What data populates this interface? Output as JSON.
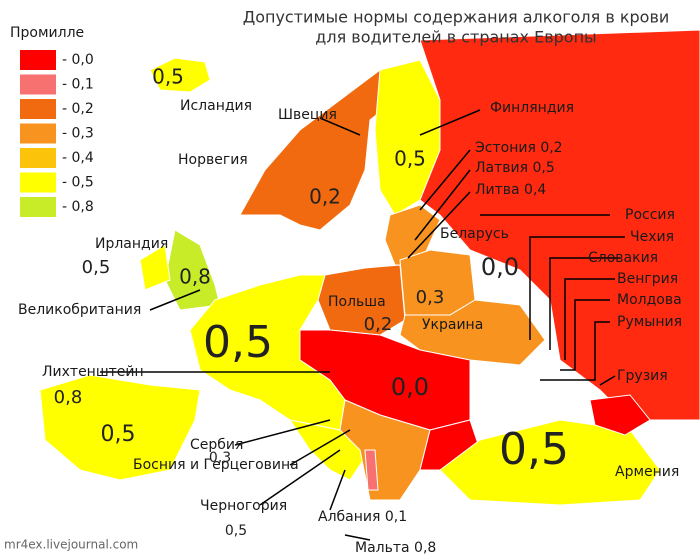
{
  "title": [
    "Допустимые нормы содержания алкоголя в крови",
    "для водителей в странах Европы"
  ],
  "legend": {
    "title": "Промилле",
    "items": [
      {
        "label": "- 0,0",
        "color": "#ff0000"
      },
      {
        "label": "- 0,1",
        "color": "#f87171"
      },
      {
        "label": "- 0,2",
        "color": "#f26a10"
      },
      {
        "label": "- 0,3",
        "color": "#f7931e"
      },
      {
        "label": "- 0,4",
        "color": "#fbc30a"
      },
      {
        "label": "- 0,5",
        "color": "#ffff00"
      },
      {
        "label": "- 0,8",
        "color": "#c8ec28"
      }
    ]
  },
  "country_labels": [
    "Исландия",
    "Швеция",
    "Финляндия",
    "Норвегия",
    "Эстония 0,2",
    "Латвия 0,5",
    "Литва 0,4",
    "Россия",
    "Ирландия",
    "Чехия",
    "Беларусь",
    "Словакия",
    "Венгрия",
    "Великобритания",
    "Польша",
    "Молдова",
    "Украина",
    "Румыния",
    "Лихтенштейн",
    "Грузия",
    "Сербия",
    "Босния и Герцеговина",
    "Армения",
    "Черногория",
    "Албания 0,1",
    "Мальта 0,8"
  ],
  "map_values": [
    "0,5",
    "0,5",
    "0,2",
    "0,0",
    "0,5",
    "0,8",
    "0,3",
    "0,2",
    "0,5",
    "0,8",
    "0,5",
    "0,0",
    "0,3",
    "0,5",
    "0,5"
  ],
  "watermark": "mr4ex.livejournal.com"
}
